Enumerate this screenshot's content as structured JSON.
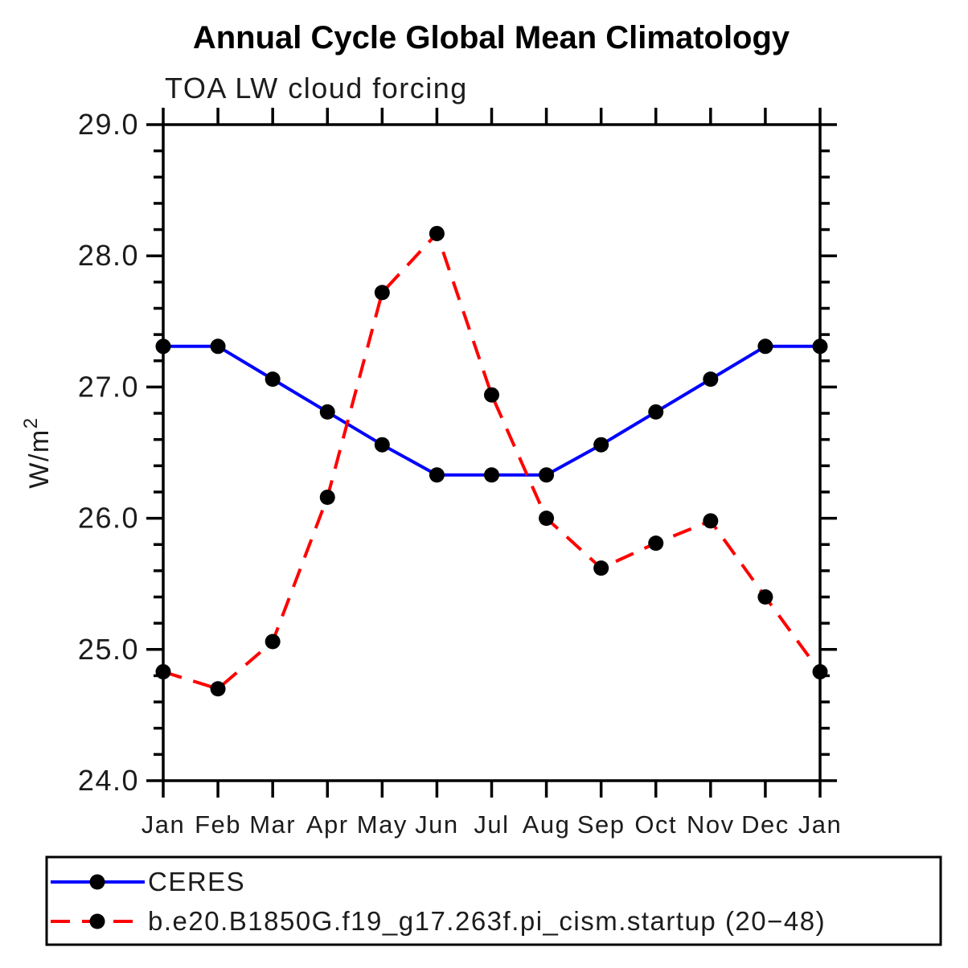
{
  "title": "Annual Cycle Global Mean Climatology",
  "subtitle": "TOA LW cloud forcing",
  "y_axis_label": {
    "base": "W/m",
    "superscript": "2"
  },
  "colors": {
    "ceres_line": "#0000ff",
    "model_line": "#ff0000",
    "marker": "#000000",
    "axis": "#000000",
    "title_text": "#000000",
    "label_text": "#1c1c1c",
    "background": "#ffffff"
  },
  "chart_data": {
    "type": "line",
    "title": "Annual Cycle Global Mean Climatology",
    "subtitle": "TOA LW cloud forcing",
    "xlabel": "",
    "ylabel": "W/m^2",
    "categories": [
      "Jan",
      "Feb",
      "Mar",
      "Apr",
      "May",
      "Jun",
      "Jul",
      "Aug",
      "Sep",
      "Oct",
      "Nov",
      "Dec",
      "Jan"
    ],
    "ylim": [
      24.0,
      29.0
    ],
    "ytick_values": [
      24.0,
      25.0,
      26.0,
      27.0,
      28.0,
      29.0
    ],
    "ytick_labels": [
      "24.0",
      "25.0",
      "26.0",
      "27.0",
      "28.0",
      "29.0"
    ],
    "yminor_interval": 0.2,
    "grid": false,
    "legend_position": "bottom",
    "series": [
      {
        "name": "CERES",
        "line_style": "solid",
        "line_color": "#0000ff",
        "marker": "filled-circle",
        "marker_color": "#000000",
        "values": [
          27.31,
          27.31,
          27.06,
          26.81,
          26.56,
          26.33,
          26.33,
          26.33,
          26.56,
          26.81,
          27.06,
          27.31,
          27.31
        ]
      },
      {
        "name": "b.e20.B1850G.f19_g17.263f.pi_cism.startup (20−48)",
        "line_style": "dashed",
        "line_color": "#ff0000",
        "marker": "filled-circle",
        "marker_color": "#000000",
        "values": [
          24.83,
          24.7,
          25.06,
          26.16,
          27.72,
          28.17,
          26.94,
          26.0,
          25.62,
          25.81,
          25.98,
          25.4,
          24.83
        ]
      }
    ]
  }
}
